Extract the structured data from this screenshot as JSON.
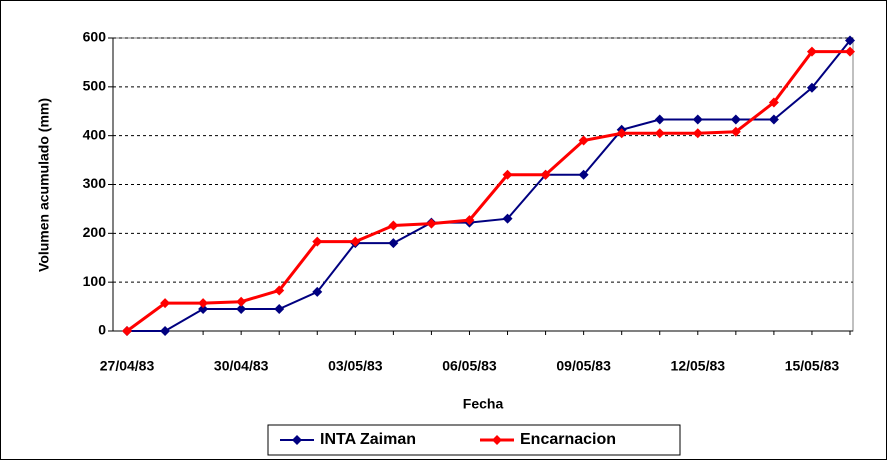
{
  "chart_data": {
    "type": "line",
    "x_label": "Fecha",
    "y_label": "Volumen acumulado (mm)",
    "categories": [
      "27/04/83",
      null,
      null,
      "30/04/83",
      null,
      null,
      "03/05/83",
      null,
      null,
      "06/05/83",
      null,
      null,
      "09/05/83",
      null,
      null,
      "12/05/83",
      null,
      null,
      "15/05/83",
      null
    ],
    "series": [
      {
        "name": "INTA Zaiman",
        "color": "#000080",
        "values": [
          0,
          0,
          45,
          45,
          45,
          80,
          180,
          180,
          222,
          222,
          230,
          320,
          320,
          412,
          433,
          433,
          433,
          433,
          498,
          595
        ]
      },
      {
        "name": "Encarnacion",
        "color": "#ff0000",
        "values": [
          0,
          57,
          57,
          60,
          83,
          183,
          183,
          216,
          220,
          227,
          320,
          320,
          390,
          405,
          405,
          405,
          408,
          468,
          572,
          572
        ]
      }
    ],
    "ylim": [
      0,
      600
    ],
    "yticks": [
      0,
      100,
      200,
      300,
      400,
      500,
      600
    ],
    "grid": true,
    "legend": "bottom"
  }
}
